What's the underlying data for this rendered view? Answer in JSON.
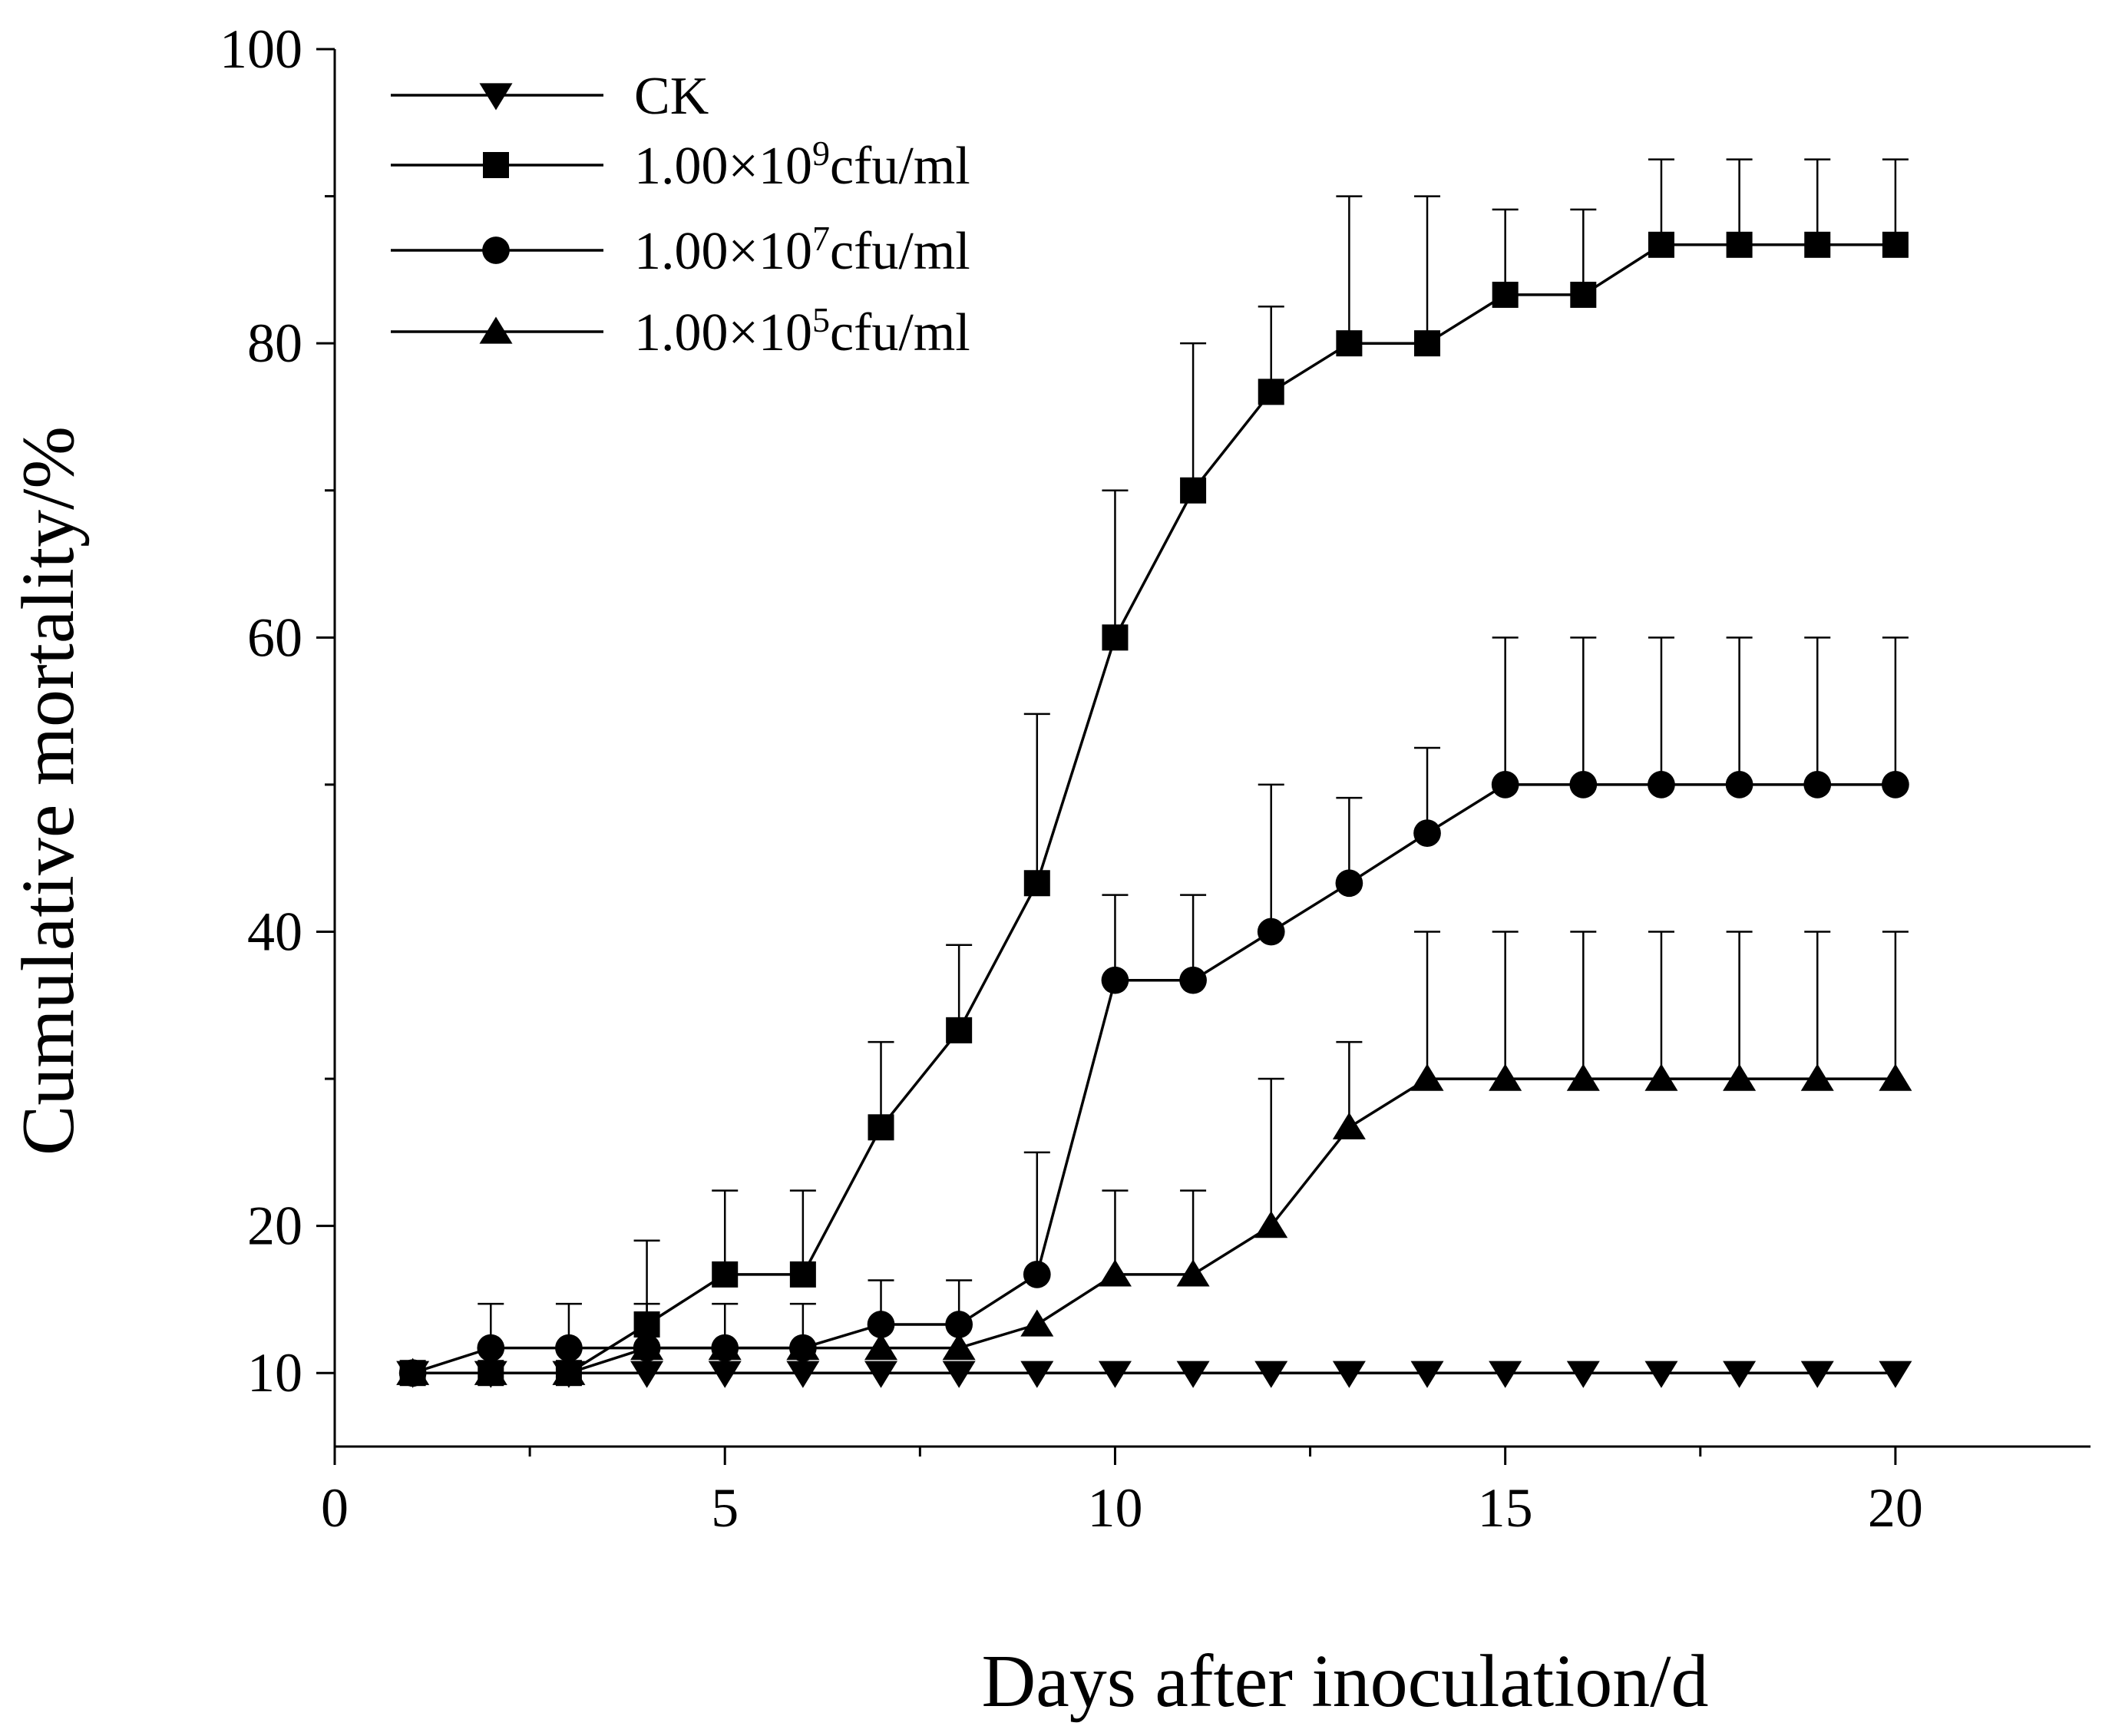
{
  "chart_data": {
    "type": "line",
    "title": "",
    "xlabel": "Days after inoculation/d",
    "ylabel": "Cumulative mortality/%",
    "xlim": [
      0,
      22.5
    ],
    "ylim": [
      5,
      100
    ],
    "x_ticks": [
      0,
      5,
      10,
      15,
      20
    ],
    "y_ticks": [
      10,
      20,
      40,
      60,
      80,
      100
    ],
    "x_minor_ticks": [
      2.5,
      7.5,
      12.5,
      17.5
    ],
    "y_minor_ticks": [
      30,
      50,
      70,
      90
    ],
    "legend_position": "top-left",
    "grid": false,
    "x": [
      1,
      2,
      3,
      4,
      5,
      6,
      7,
      8,
      9,
      10,
      11,
      12,
      13,
      14,
      15,
      16,
      17,
      18,
      19,
      20
    ],
    "series": [
      {
        "name": "CK",
        "label_base": "CK",
        "label_exp": "",
        "label_unit": "",
        "marker": "triangle-down",
        "values": [
          10,
          10,
          10,
          10,
          10,
          10,
          10,
          10,
          10,
          10,
          10,
          10,
          10,
          10,
          10,
          10,
          10,
          10,
          10,
          10
        ],
        "errors": [
          0,
          0,
          0,
          0,
          0,
          0,
          0,
          0,
          0,
          0,
          0,
          0,
          0,
          0,
          0,
          0,
          0,
          0,
          0,
          0
        ]
      },
      {
        "name": "1.00×10^9cfu/ml",
        "label_base": "1.00×10",
        "label_exp": "9",
        "label_unit": "cfu/ml",
        "marker": "square",
        "values": [
          10,
          10,
          10,
          13.3,
          16.7,
          16.7,
          26.7,
          33.3,
          43.3,
          60,
          70,
          76.7,
          80,
          80,
          83.3,
          83.3,
          86.7,
          86.7,
          86.7,
          86.7
        ],
        "errors": [
          0,
          0,
          0,
          5.7,
          5.7,
          5.7,
          5.8,
          5.8,
          11.5,
          10,
          10,
          5.8,
          10,
          10,
          5.8,
          5.8,
          5.8,
          5.8,
          5.8,
          5.8
        ]
      },
      {
        "name": "1.00×10^7cfu/ml",
        "label_base": "1.00×10",
        "label_exp": "7",
        "label_unit": "cfu/ml",
        "marker": "circle",
        "values": [
          10,
          11.7,
          11.7,
          11.7,
          11.7,
          11.7,
          13.3,
          13.3,
          16.7,
          36.7,
          36.7,
          40,
          43.3,
          46.7,
          50,
          50,
          50,
          50,
          50,
          50
        ],
        "errors": [
          0,
          3,
          3,
          3,
          3,
          3,
          3,
          3,
          8.3,
          5.8,
          5.8,
          10,
          5.8,
          5.8,
          10,
          10,
          10,
          10,
          10,
          10
        ]
      },
      {
        "name": "1.00×10^5cfu/ml",
        "label_base": "1.00×10",
        "label_exp": "5",
        "label_unit": "cfu/ml",
        "marker": "triangle-up",
        "values": [
          10,
          10,
          10,
          11.7,
          11.7,
          11.7,
          11.7,
          11.7,
          13.3,
          16.7,
          16.7,
          20,
          26.7,
          30,
          30,
          30,
          30,
          30,
          30,
          30
        ],
        "errors": [
          0,
          0,
          0,
          0,
          0,
          0,
          0,
          0,
          0,
          5.7,
          5.7,
          10,
          5.8,
          10,
          10,
          10,
          10,
          10,
          10,
          10
        ]
      }
    ]
  }
}
